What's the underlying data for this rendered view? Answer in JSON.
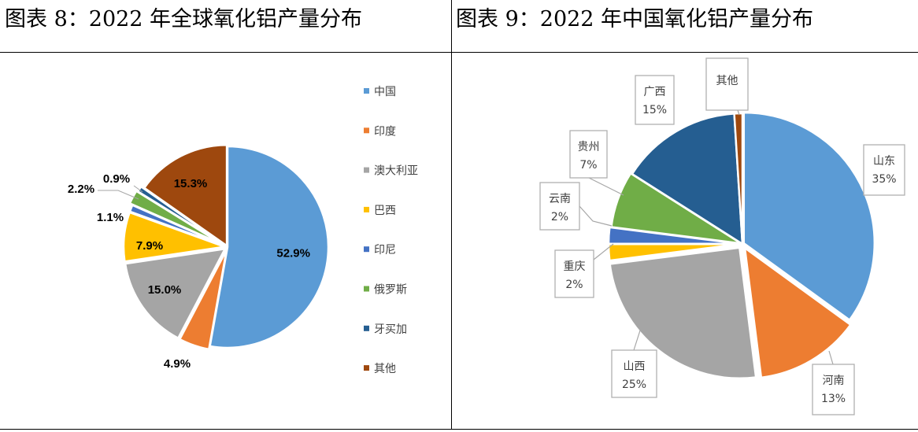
{
  "left": {
    "title": "图表 8：2022 年全球氧化铝产量分布",
    "chart_data": {
      "type": "pie",
      "title": "2022 年全球氧化铝产量分布",
      "categories": [
        "中国",
        "印度",
        "澳大利亚",
        "巴西",
        "印尼",
        "俄罗斯",
        "牙买加",
        "其他"
      ],
      "values": [
        52.9,
        4.9,
        15.0,
        7.9,
        1.1,
        2.2,
        0.9,
        15.3
      ],
      "labels": [
        "52.9%",
        "4.9%",
        "15.0%",
        "7.9%",
        "1.1%",
        "2.2%",
        "0.9%",
        "15.3%"
      ],
      "colors": [
        "#5B9BD5",
        "#ED7D31",
        "#A5A5A5",
        "#FFC000",
        "#4472C4",
        "#70AD47",
        "#255E91",
        "#9E480E"
      ],
      "legend": "right"
    }
  },
  "right": {
    "title": "图表 9：2022 年中国氧化铝产量分布",
    "chart_data": {
      "type": "pie",
      "title": "2022 年中国氧化铝产量分布",
      "categories": [
        "山东",
        "河南",
        "山西",
        "重庆",
        "云南",
        "贵州",
        "广西",
        "其他"
      ],
      "values": [
        35,
        13,
        25,
        2,
        2,
        7,
        15,
        1
      ],
      "labels": [
        "35%",
        "13%",
        "25%",
        "2%",
        "2%",
        "7%",
        "15%",
        ""
      ],
      "colors": [
        "#5B9BD5",
        "#ED7D31",
        "#A5A5A5",
        "#FFC000",
        "#4472C4",
        "#70AD47",
        "#255E91",
        "#9E480E"
      ],
      "legend": "none"
    }
  }
}
